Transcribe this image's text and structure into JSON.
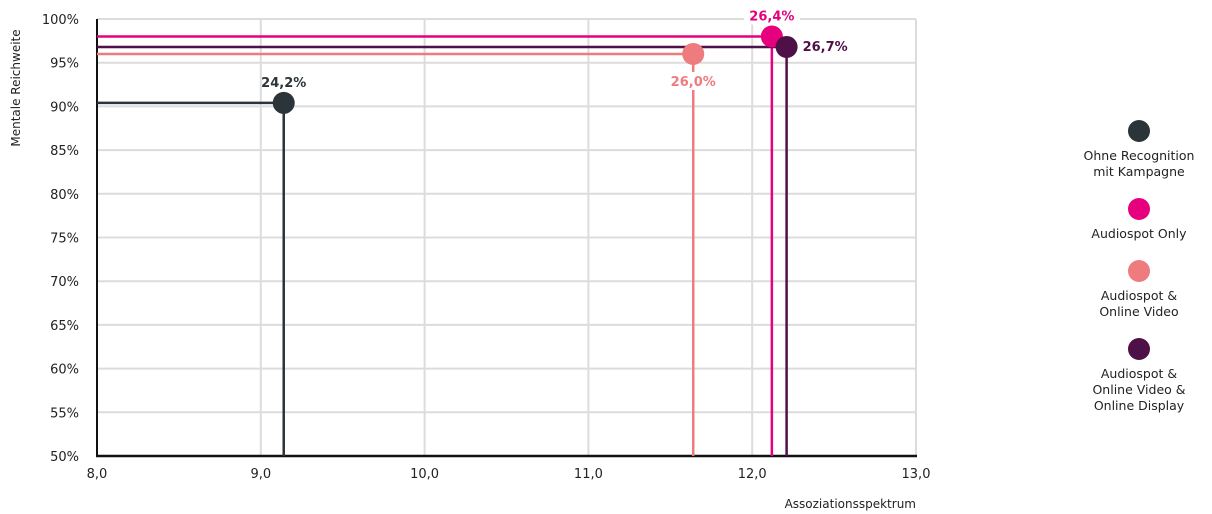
{
  "chart_data": {
    "type": "scatter",
    "title": "",
    "xlabel": "Assoziationsspektrum",
    "ylabel": "Mentale Reichweite",
    "xlim": [
      8.0,
      13.0
    ],
    "ylim": [
      50,
      100
    ],
    "x_ticks": [
      "8,0",
      "9,0",
      "10,0",
      "11,0",
      "12,0",
      "13,0"
    ],
    "y_ticks": [
      "50%",
      "55%",
      "60%",
      "65%",
      "70%",
      "75%",
      "80%",
      "85%",
      "90%",
      "95%",
      "100%"
    ],
    "grid": true,
    "legend_position": "right",
    "series": [
      {
        "name": "Ohne Recognition\nmit Kampagne",
        "x": 9.14,
        "y": 90.4,
        "label": "24,2%",
        "color": "#2b3438"
      },
      {
        "name": "Audiospot Only",
        "x": 12.12,
        "y": 98.0,
        "label": "26,4%",
        "color": "#e6007e"
      },
      {
        "name": "Audiospot &\nOnline Video",
        "x": 11.64,
        "y": 96.0,
        "label": "26,0%",
        "color": "#ee7b7e"
      },
      {
        "name": "Audiospot &\nOnline Video &\nOnline Display",
        "x": 12.21,
        "y": 96.8,
        "label": "26,7%",
        "color": "#4f0f47"
      }
    ]
  }
}
